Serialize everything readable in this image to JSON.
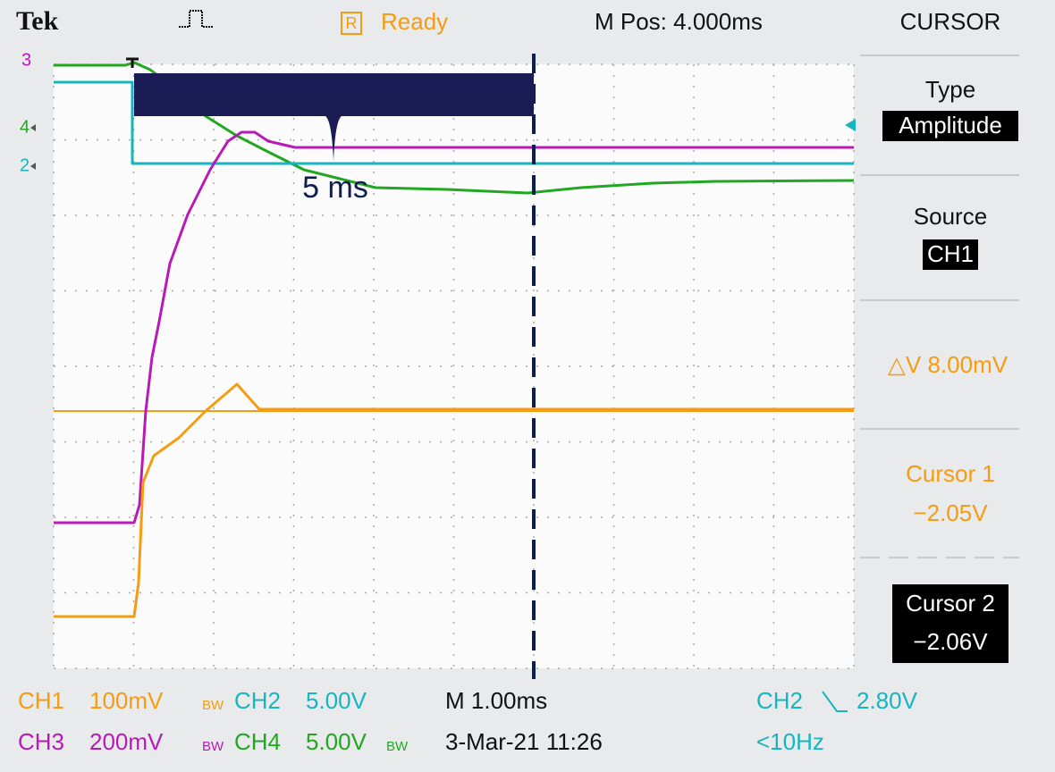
{
  "header": {
    "brand": "Tek",
    "status_icon": "R",
    "status": "Ready",
    "position": "M Pos: 4.000ms"
  },
  "menu": {
    "title": "CURSOR",
    "type_label": "Type",
    "type_value": "Amplitude",
    "source_label": "Source",
    "source_value": "CH1",
    "delta": "△V 8.00mV",
    "cursor1_label": "Cursor 1",
    "cursor1_value": "−2.05V",
    "cursor2_label": "Cursor 2",
    "cursor2_value": "−2.06V"
  },
  "markers": {
    "ch3": "3",
    "ch4": "4",
    "ch2": "2"
  },
  "annotation": "5 ms",
  "footer": {
    "ch1": "CH1",
    "ch1_scale": "100mV",
    "ch1_bw": "BW",
    "ch2": "CH2",
    "ch2_scale": "5.00V",
    "timebase": "M 1.00ms",
    "trigger_source": "CH2",
    "trigger_level": "2.80V",
    "ch3": "CH3",
    "ch3_scale": "200mV",
    "ch3_bw": "BW",
    "ch4": "CH4",
    "ch4_scale": "5.00V",
    "ch4_bw": "BW",
    "date": "3-Mar-21 11:26",
    "frequency": "<10Hz"
  }
}
